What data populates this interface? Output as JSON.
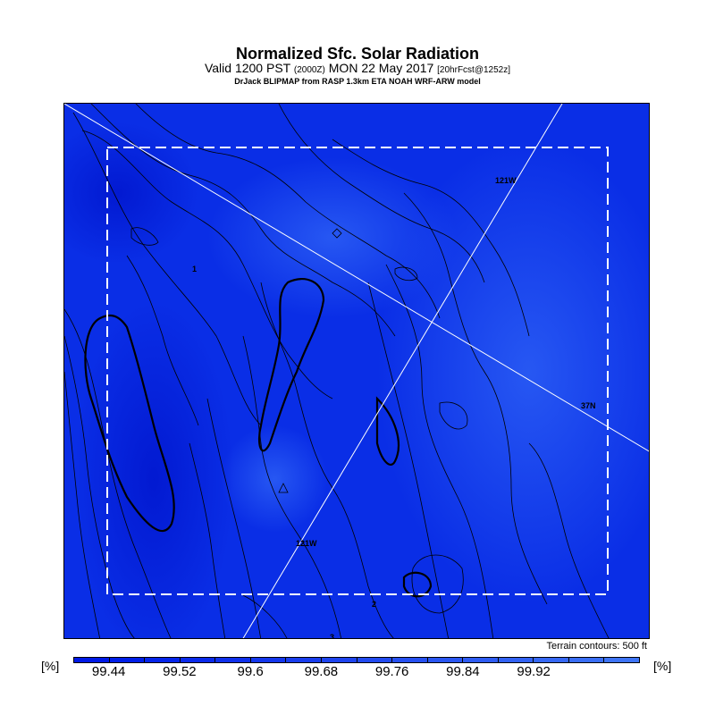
{
  "title": "Normalized Sfc. Solar Radiation",
  "subtitle": {
    "valid_prefix": "Valid 1200 PST",
    "zulu": "(2000Z)",
    "date": "MON 22 May 2017",
    "forecast": "[20hrFcst@1252z]"
  },
  "model_line": "DrJack BLIPMAP from RASP 1.3km ETA NOAH WRF-ARW model",
  "map_labels": {
    "lon_top": "121W",
    "lon_bottom": "121W",
    "lat": "37N",
    "contour_1": "1",
    "contour_2": "2",
    "contour_3": "3"
  },
  "terrain_note": "Terrain contours: 500 ft",
  "colorbar": {
    "unit_left": "[%]",
    "unit_right": "[%]",
    "ticks": [
      "99.44",
      "99.52",
      "99.6",
      "99.68",
      "99.76",
      "99.84",
      "99.92"
    ],
    "colors": [
      "#0019e6",
      "#001ee8",
      "#0524ea",
      "#0a2aeb",
      "#0f30ec",
      "#1437ed",
      "#193dee",
      "#1e44ef",
      "#224af0",
      "#2650f1",
      "#2a56f2",
      "#2e5cf3",
      "#3262f4",
      "#3668f5",
      "#3a6ef6",
      "#3e74f7"
    ]
  },
  "map_colors": {
    "base": "#0a2ee6",
    "light": "#1f4ff2",
    "dark": "#0520d8",
    "sea": "#1848f0"
  }
}
